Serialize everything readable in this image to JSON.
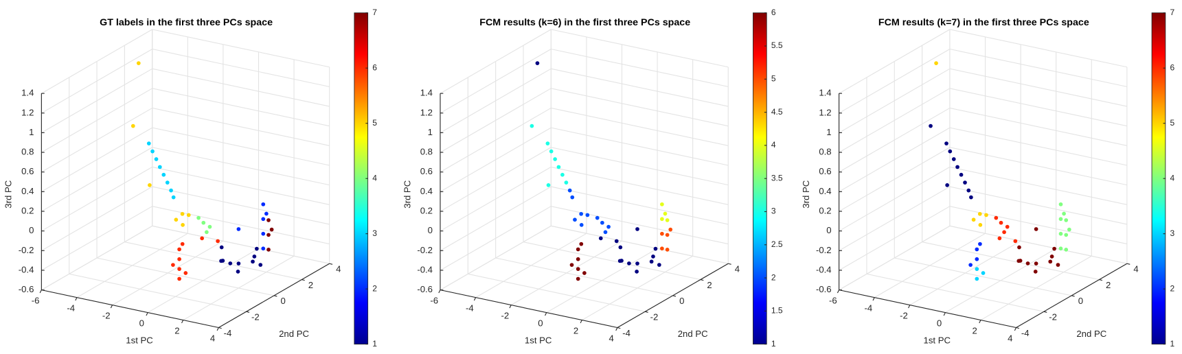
{
  "chart_data": [
    {
      "type": "scatter3d",
      "title": "GT labels in the first three PCs space",
      "xlabel": "1st PC",
      "ylabel": "2nd PC",
      "zlabel": "3rd PC",
      "xlim": [
        -6,
        4
      ],
      "ylim": [
        -4,
        4
      ],
      "zlim": [
        -0.6,
        1.4
      ],
      "xticks": [
        -6,
        -4,
        -2,
        0,
        2,
        4
      ],
      "yticks": [
        -4,
        -2,
        0,
        2,
        4
      ],
      "zticks": [
        -0.6,
        -0.4,
        -0.2,
        0,
        0.2,
        0.4,
        0.6,
        0.8,
        1,
        1.2,
        1.4
      ],
      "grid": true,
      "colormap": "jet",
      "clim": [
        1,
        7
      ],
      "cticks": [
        1,
        2,
        3,
        4,
        5,
        6,
        7
      ],
      "points": {
        "x": [
          -1.5,
          -1.35,
          -1.2,
          -1.05,
          -0.9,
          -0.75,
          -0.6,
          -0.5,
          0,
          -0.2,
          0.2,
          0.1,
          -1.3,
          -3.8,
          -2,
          0.8,
          1.0,
          0.6,
          0.9,
          1,
          1,
          1,
          1,
          1.2,
          0.8,
          1.1,
          1.5,
          2,
          1.5,
          2,
          2.5,
          1.8,
          2.2,
          2.8,
          1.2,
          2.4,
          3,
          2,
          3,
          3,
          3,
          3,
          3.1,
          2,
          3.3,
          3.3,
          3.3,
          3.4
        ],
        "y": [
          -2,
          -1.93,
          -1.85,
          -1.78,
          -1.7,
          -1.62,
          -1.55,
          -1.5,
          -1.5,
          -1.7,
          -1.3,
          -1.6,
          -2.2,
          0.2,
          -2.5,
          -1,
          -0.8,
          -1.1,
          -0.9,
          -3,
          -3,
          -3,
          -3,
          -2.8,
          -3.2,
          -2.9,
          -2,
          -1.5,
          -0.5,
          0,
          0.5,
          -1,
          -0.3,
          0,
          -0.2,
          0.8,
          0.3,
          -0.6,
          0.5,
          0.5,
          0.5,
          0.5,
          0.6,
          0,
          0.5,
          0.5,
          0.5,
          0.6
        ],
        "z": [
          0.9,
          0.82,
          0.74,
          0.66,
          0.58,
          0.5,
          0.42,
          0.35,
          0.2,
          0.15,
          0.18,
          0.1,
          0.5,
          1.45,
          1.1,
          0.1,
          0.05,
          0.15,
          0,
          -0.3,
          -0.2,
          -0.1,
          0,
          -0.25,
          -0.15,
          0.05,
          0.05,
          0,
          -0.3,
          -0.35,
          -0.3,
          -0.25,
          -0.4,
          -0.3,
          -0.2,
          -0.25,
          -0.35,
          -0.3,
          -0.2,
          -0.05,
          0.1,
          0.25,
          0.15,
          0,
          -0.2,
          -0.05,
          0.1,
          0
        ],
        "c": [
          3,
          3,
          3,
          3,
          3,
          3,
          3,
          3,
          5,
          5,
          5,
          5,
          5,
          5,
          5,
          4,
          4,
          4,
          4,
          6,
          6,
          6,
          6,
          6,
          6,
          6,
          6,
          6,
          1,
          1,
          1,
          1,
          1,
          1,
          1,
          1,
          1,
          1,
          2,
          2,
          2,
          2,
          2,
          2,
          7,
          7,
          7,
          7
        ]
      }
    },
    {
      "type": "scatter3d",
      "title": "FCM results (k=6) in the first three PCs space",
      "xlabel": "1st PC",
      "ylabel": "2nd PC",
      "zlabel": "3rd PC",
      "xlim": [
        -6,
        4
      ],
      "ylim": [
        -4,
        4
      ],
      "zlim": [
        -0.6,
        1.4
      ],
      "xticks": [
        -6,
        -4,
        -2,
        0,
        2,
        4
      ],
      "yticks": [
        -4,
        -2,
        0,
        2,
        4
      ],
      "zticks": [
        -0.6,
        -0.4,
        -0.2,
        0,
        0.2,
        0.4,
        0.6,
        0.8,
        1,
        1.2,
        1.4
      ],
      "grid": true,
      "colormap": "jet",
      "clim": [
        1,
        6
      ],
      "cticks": [
        1,
        1.5,
        2,
        2.5,
        3,
        3.5,
        4,
        4.5,
        5,
        5.5,
        6
      ],
      "points": {
        "x": [
          -1.5,
          -1.35,
          -1.2,
          -1.05,
          -0.9,
          -0.75,
          -0.6,
          -0.5,
          0,
          -0.2,
          0.2,
          0.1,
          -1.3,
          -3.8,
          -2,
          0.8,
          1.0,
          0.6,
          0.9,
          1,
          1,
          1,
          1,
          1.2,
          0.8,
          1.1,
          1.5,
          2,
          1.5,
          2,
          2.5,
          1.8,
          2.2,
          2.8,
          1.2,
          2.4,
          3,
          2,
          3,
          3,
          3,
          3,
          3.1,
          2,
          3.3,
          3.3,
          3.3,
          3.4
        ],
        "y": [
          -2,
          -1.93,
          -1.85,
          -1.78,
          -1.7,
          -1.62,
          -1.55,
          -1.5,
          -1.5,
          -1.7,
          -1.3,
          -1.6,
          -2.2,
          0.2,
          -2.5,
          -1,
          -0.8,
          -1.1,
          -0.9,
          -3,
          -3,
          -3,
          -3,
          -2.8,
          -3.2,
          -2.9,
          -2,
          -1.5,
          -0.5,
          0,
          0.5,
          -1,
          -0.3,
          0,
          -0.2,
          0.8,
          0.3,
          -0.6,
          0.5,
          0.5,
          0.5,
          0.5,
          0.6,
          0,
          0.5,
          0.5,
          0.5,
          0.6
        ],
        "z": [
          0.9,
          0.82,
          0.74,
          0.66,
          0.58,
          0.5,
          0.42,
          0.35,
          0.2,
          0.15,
          0.18,
          0.1,
          0.5,
          1.45,
          1.1,
          0.1,
          0.05,
          0.15,
          0,
          -0.3,
          -0.2,
          -0.1,
          0,
          -0.25,
          -0.15,
          0.05,
          0.05,
          0,
          -0.3,
          -0.35,
          -0.3,
          -0.25,
          -0.4,
          -0.3,
          -0.2,
          -0.25,
          -0.35,
          -0.3,
          -0.2,
          -0.05,
          0.1,
          0.25,
          0.15,
          0,
          -0.2,
          -0.05,
          0.1,
          0
        ],
        "c": [
          3,
          3,
          3,
          3,
          3,
          3,
          2,
          2,
          2,
          2,
          2,
          2,
          3,
          1,
          3,
          2,
          2,
          2,
          2,
          6,
          6,
          6,
          6,
          6,
          6,
          6,
          1,
          1,
          1,
          1,
          1,
          1,
          1,
          1,
          1,
          1,
          1,
          1,
          5,
          5,
          4,
          4,
          4,
          1,
          5,
          5,
          4,
          5
        ]
      }
    },
    {
      "type": "scatter3d",
      "title": "FCM results (k=7) in the first three PCs space",
      "xlabel": "1st PC",
      "ylabel": "2nd PC",
      "zlabel": "3rd PC",
      "xlim": [
        -6,
        4
      ],
      "ylim": [
        -4,
        4
      ],
      "zlim": [
        -0.6,
        1.4
      ],
      "xticks": [
        -6,
        -4,
        -2,
        0,
        2,
        4
      ],
      "yticks": [
        -4,
        -2,
        0,
        2,
        4
      ],
      "zticks": [
        -0.6,
        -0.4,
        -0.2,
        0,
        0.2,
        0.4,
        0.6,
        0.8,
        1,
        1.2,
        1.4
      ],
      "grid": true,
      "colormap": "jet",
      "clim": [
        1,
        7
      ],
      "cticks": [
        1,
        2,
        3,
        4,
        5,
        6,
        7
      ],
      "points": {
        "x": [
          -1.5,
          -1.35,
          -1.2,
          -1.05,
          -0.9,
          -0.75,
          -0.6,
          -0.5,
          0,
          -0.2,
          0.2,
          0.1,
          -1.3,
          -3.8,
          -2,
          0.8,
          1.0,
          0.6,
          0.9,
          1,
          1,
          1,
          1,
          1.2,
          0.8,
          1.1,
          1.5,
          2,
          1.5,
          2,
          2.5,
          1.8,
          2.2,
          2.8,
          1.2,
          2.4,
          3,
          2,
          3,
          3,
          3,
          3,
          3.1,
          2,
          3.3,
          3.3,
          3.3,
          3.4
        ],
        "y": [
          -2,
          -1.93,
          -1.85,
          -1.78,
          -1.7,
          -1.62,
          -1.55,
          -1.5,
          -1.5,
          -1.7,
          -1.3,
          -1.6,
          -2.2,
          0.2,
          -2.5,
          -1,
          -0.8,
          -1.1,
          -0.9,
          -3,
          -3,
          -3,
          -3,
          -2.8,
          -3.2,
          -2.9,
          -2,
          -1.5,
          -0.5,
          0,
          0.5,
          -1,
          -0.3,
          0,
          -0.2,
          0.8,
          0.3,
          -0.6,
          0.5,
          0.5,
          0.5,
          0.5,
          0.6,
          0,
          0.5,
          0.5,
          0.5,
          0.6
        ],
        "z": [
          0.9,
          0.82,
          0.74,
          0.66,
          0.58,
          0.5,
          0.42,
          0.35,
          0.2,
          0.15,
          0.18,
          0.1,
          0.5,
          1.45,
          1.1,
          0.1,
          0.05,
          0.15,
          0,
          -0.3,
          -0.2,
          -0.1,
          0,
          -0.25,
          -0.15,
          0.05,
          0.05,
          0,
          -0.3,
          -0.35,
          -0.3,
          -0.25,
          -0.4,
          -0.3,
          -0.2,
          -0.25,
          -0.35,
          -0.3,
          -0.2,
          -0.05,
          0.1,
          0.25,
          0.15,
          0,
          -0.2,
          -0.05,
          0.1,
          0
        ],
        "c": [
          1,
          1,
          1,
          1,
          1,
          1,
          1,
          1,
          5,
          5,
          5,
          5,
          1,
          5,
          1,
          6,
          6,
          6,
          6,
          3,
          3,
          2,
          2,
          3,
          2,
          2,
          6,
          6,
          7,
          7,
          7,
          7,
          7,
          7,
          7,
          7,
          7,
          7,
          4,
          4,
          4,
          4,
          4,
          7,
          4,
          4,
          4,
          4
        ]
      }
    }
  ]
}
